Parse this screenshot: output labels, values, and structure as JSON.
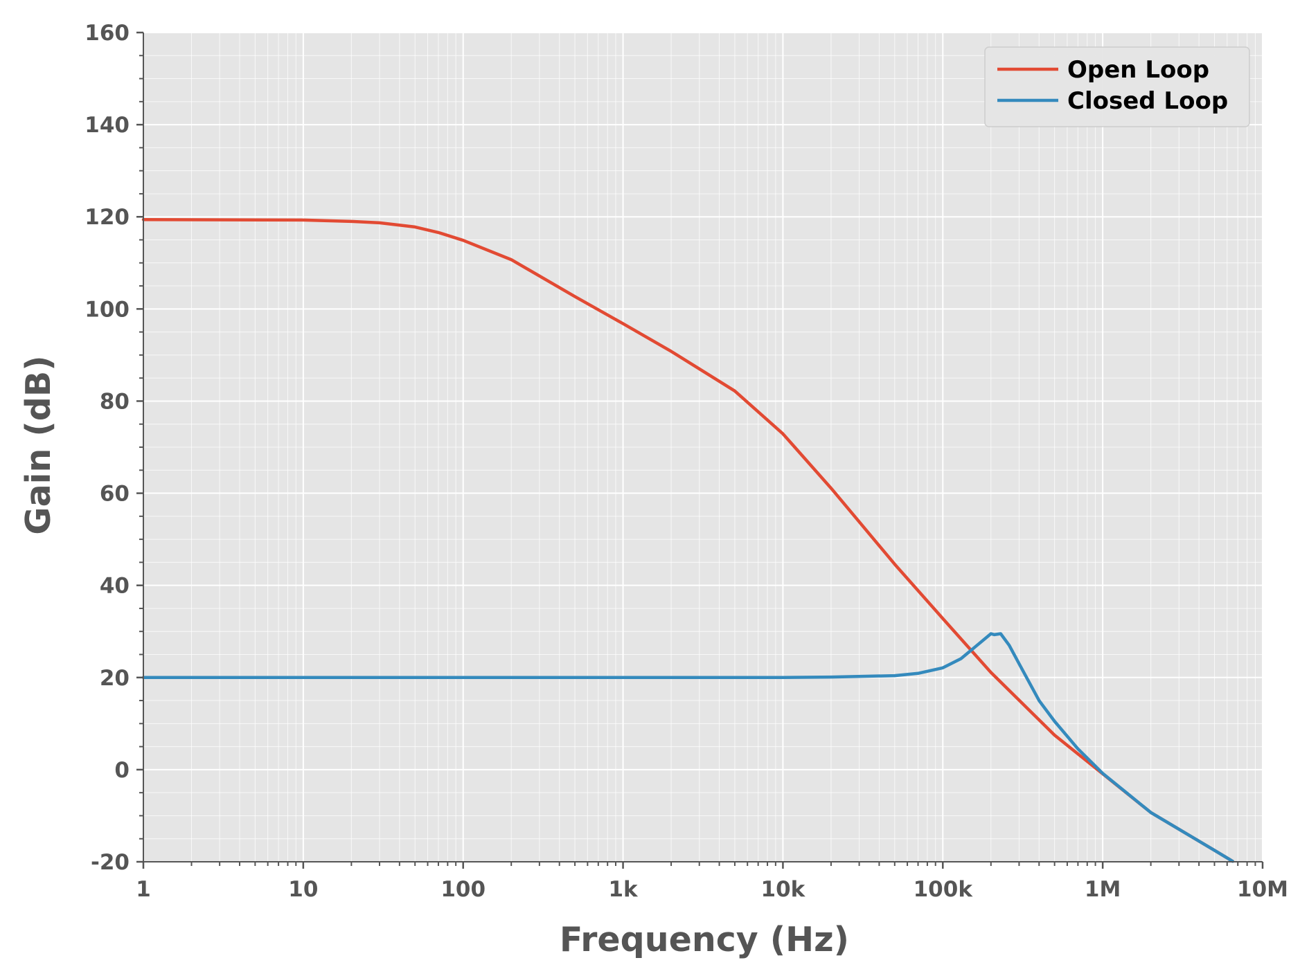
{
  "chart_data": {
    "type": "line",
    "xlabel": "Frequency (Hz)",
    "ylabel": "Gain (dB)",
    "x_scale": "log",
    "xlim": [
      1,
      10000000
    ],
    "ylim": [
      -20,
      160
    ],
    "x_ticks": [
      {
        "value": 1,
        "label": "1"
      },
      {
        "value": 10,
        "label": "10"
      },
      {
        "value": 100,
        "label": "100"
      },
      {
        "value": 1000,
        "label": "1k"
      },
      {
        "value": 10000,
        "label": "10k"
      },
      {
        "value": 100000,
        "label": "100k"
      },
      {
        "value": 1000000,
        "label": "1M"
      },
      {
        "value": 10000000,
        "label": "10M"
      }
    ],
    "y_ticks": [
      {
        "value": -20,
        "label": "-20"
      },
      {
        "value": 0,
        "label": "0"
      },
      {
        "value": 20,
        "label": "20"
      },
      {
        "value": 40,
        "label": "40"
      },
      {
        "value": 60,
        "label": "60"
      },
      {
        "value": 80,
        "label": "80"
      },
      {
        "value": 100,
        "label": "100"
      },
      {
        "value": 120,
        "label": "120"
      },
      {
        "value": 140,
        "label": "140"
      },
      {
        "value": 160,
        "label": "160"
      }
    ],
    "grid": true,
    "minor_grid": true,
    "legend_position": "top-right",
    "background": "#e5e5e5",
    "series": [
      {
        "name": "Open Loop",
        "color": "#e24a33",
        "x": [
          1,
          10,
          20,
          30,
          50,
          70,
          100,
          200,
          500,
          1000,
          2000,
          5000,
          10000,
          20000,
          50000,
          100000,
          200000,
          500000,
          1000000,
          2000000,
          5000000,
          6500000
        ],
        "y": [
          119.4,
          119.3,
          119.0,
          118.7,
          117.8,
          116.6,
          114.9,
          110.7,
          102.7,
          96.8,
          90.8,
          82.2,
          72.9,
          61.1,
          44.6,
          32.8,
          21.1,
          7.5,
          -0.9,
          -9.3,
          -17.5,
          -19.9
        ]
      },
      {
        "name": "Closed Loop",
        "color": "#348abd",
        "x": [
          1,
          10,
          100,
          1000,
          10000,
          20000,
          50000,
          70000,
          100000,
          130000,
          160000,
          200000,
          210000,
          230000,
          260000,
          300000,
          400000,
          500000,
          700000,
          1000000,
          2000000,
          5000000,
          6500000
        ],
        "y": [
          20.0,
          20.0,
          20.0,
          20.0,
          20.0,
          20.1,
          20.4,
          20.9,
          22.1,
          24.1,
          26.7,
          29.5,
          29.3,
          29.5,
          27.0,
          23.0,
          15.0,
          10.5,
          4.5,
          -0.8,
          -9.3,
          -17.5,
          -19.9
        ]
      }
    ]
  }
}
